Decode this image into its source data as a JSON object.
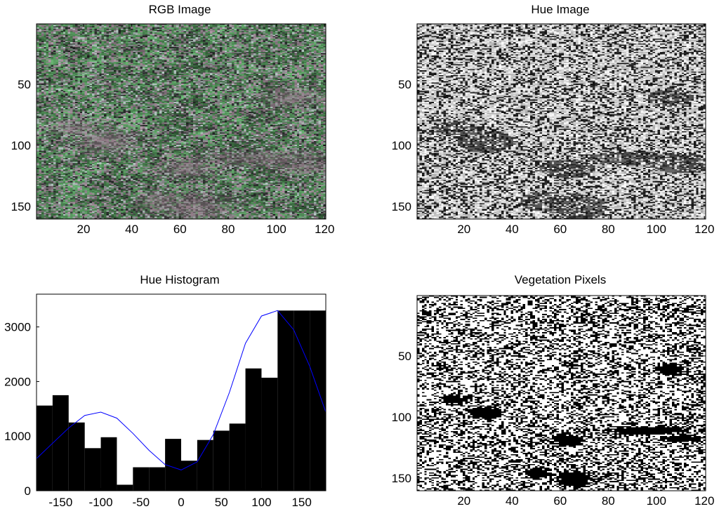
{
  "panels": {
    "rgb": {
      "title": "RGB Image",
      "x_ticks": [
        20,
        40,
        60,
        80,
        100,
        120
      ],
      "y_ticks": [
        50,
        100,
        150
      ],
      "xlim": [
        0.5,
        120.5
      ],
      "ylim": [
        0.5,
        160.5
      ]
    },
    "hue": {
      "title": "Hue Image",
      "x_ticks": [
        20,
        40,
        60,
        80,
        100,
        120
      ],
      "y_ticks": [
        50,
        100,
        150
      ],
      "xlim": [
        0.5,
        120.5
      ],
      "ylim": [
        0.5,
        160.5
      ]
    },
    "veg": {
      "title": "Vegetation Pixels",
      "x_ticks": [
        20,
        40,
        60,
        80,
        100,
        120
      ],
      "y_ticks": [
        50,
        100,
        150
      ],
      "xlim": [
        0.5,
        120.5
      ],
      "ylim": [
        0.5,
        160.5
      ]
    }
  },
  "chart_data": {
    "type": "bar",
    "title": "Hue Histogram",
    "xlabel": "",
    "ylabel": "",
    "xlim": [
      -180,
      180
    ],
    "ylim": [
      0,
      3600
    ],
    "x_ticks": [
      -150,
      -100,
      -50,
      0,
      50,
      100,
      150
    ],
    "y_ticks": [
      0,
      1000,
      2000,
      3000
    ],
    "bar_color": "#000000",
    "curve_color": "#0000ff",
    "bin_width": 20,
    "categories": [
      -170,
      -150,
      -130,
      -110,
      -90,
      -70,
      -50,
      -30,
      -10,
      10,
      30,
      50,
      70,
      90,
      110,
      130,
      150,
      170
    ],
    "values": [
      1560,
      1750,
      1250,
      780,
      980,
      110,
      430,
      430,
      950,
      550,
      930,
      1100,
      1230,
      2240,
      2070,
      3300,
      3300,
      3300
    ],
    "curve": {
      "x": [
        -180,
        -160,
        -140,
        -120,
        -100,
        -80,
        -60,
        -40,
        -20,
        0,
        20,
        40,
        60,
        80,
        100,
        120,
        140,
        160,
        180
      ],
      "y": [
        590,
        870,
        1150,
        1380,
        1440,
        1330,
        1050,
        740,
        480,
        380,
        530,
        1030,
        1800,
        2700,
        3200,
        3300,
        2950,
        2280,
        1440
      ]
    }
  }
}
